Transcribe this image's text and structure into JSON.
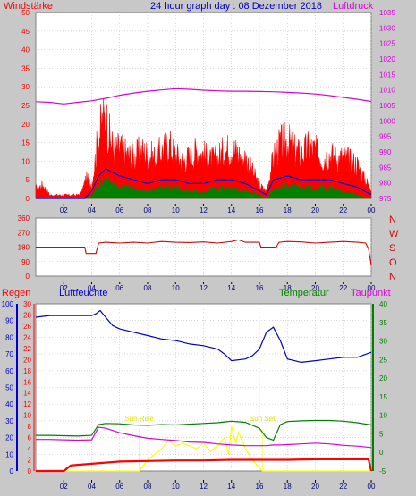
{
  "header": {
    "left_label": "Windstärke",
    "title": "24 hour graph day : 08 Dezember 2018",
    "right_label": "Luftdruck"
  },
  "colors": {
    "background": "#c8c8c8",
    "plot": "#ffffff",
    "grid": "#c0c0c0",
    "wind": "#ff0000",
    "gust": "#0000dd",
    "avg": "#008000",
    "pressure": "#dd00dd",
    "direction": "#dd0000",
    "humidity": "#0000cc",
    "temperature": "#008000",
    "dewpoint": "#dd00dd",
    "rain": "#ff0000",
    "solar": "#ffff00"
  },
  "chart_data": [
    {
      "type": "area",
      "name": "wind_pressure",
      "title": "24 hour graph day : 08 Dezember 2018",
      "left_axis_label": "Windstärke",
      "right_axis_label": "Luftdruck",
      "x_tick_labels": [
        "02",
        "04",
        "06",
        "08",
        "10",
        "12",
        "14",
        "16",
        "18",
        "20",
        "22",
        "00"
      ],
      "xlim_hours": [
        0,
        24
      ],
      "left_ticks": [
        "50",
        "45",
        "40",
        "35",
        "30",
        "25",
        "20",
        "15",
        "10",
        "5",
        "0"
      ],
      "left_ylim": [
        0,
        50
      ],
      "right_ticks": [
        "1035",
        "1030",
        "1025",
        "1020",
        "1015",
        "1010",
        "1005",
        "1000",
        "995",
        "990",
        "985",
        "980",
        "975"
      ],
      "right_ylim": [
        975,
        1035
      ],
      "series": [
        {
          "name": "",
          "color": "#ff0000",
          "hours": [
            0,
            0.5,
            1,
            2,
            3,
            3.3,
            3.6,
            4,
            4.4,
            4.7,
            5,
            5.3,
            5.6,
            6,
            6.5,
            7,
            7.5,
            8,
            8.5,
            9,
            9.5,
            10,
            10.5,
            11,
            11.5,
            12,
            12.5,
            13,
            13.5,
            14,
            14.5,
            15,
            15.5,
            16,
            16.5,
            17,
            17.5,
            18,
            18.5,
            19,
            19.5,
            20,
            20.5,
            21,
            21.5,
            22,
            22.5,
            23,
            23.5,
            24
          ],
          "values": [
            3,
            4,
            1,
            1,
            1,
            2,
            6,
            4,
            16,
            22,
            24,
            18,
            14,
            15,
            13,
            12,
            14,
            13,
            12,
            14,
            16,
            13,
            11,
            12,
            14,
            13,
            11,
            12,
            14,
            15,
            13,
            12,
            8,
            4,
            2,
            12,
            16,
            17,
            14,
            13,
            15,
            14,
            12,
            13,
            12,
            12,
            11,
            10,
            6,
            3
          ]
        },
        {
          "name": "",
          "color": "#0000dd",
          "hours": [
            0,
            3.5,
            4,
            4.5,
            5,
            5.5,
            6,
            7,
            8,
            9,
            10,
            11,
            12,
            13,
            14,
            15,
            16,
            16.5,
            17,
            18,
            19,
            20,
            21,
            22,
            23,
            24
          ],
          "values": [
            0,
            0,
            2,
            6,
            8,
            7,
            6,
            5,
            4,
            5,
            5,
            4,
            4,
            5,
            5,
            4,
            2,
            1,
            5,
            6,
            5,
            5,
            5,
            4,
            3,
            1
          ]
        },
        {
          "name": "",
          "color": "#008000",
          "hours": [
            0,
            3.5,
            4,
            4.5,
            5,
            5.5,
            6,
            7,
            8,
            9,
            10,
            11,
            12,
            13,
            14,
            15,
            16,
            16.5,
            17,
            18,
            19,
            20,
            21,
            22,
            23,
            24
          ],
          "values": [
            0,
            0,
            1,
            4,
            5,
            4,
            3,
            3,
            2,
            3,
            3,
            2,
            2,
            3,
            3,
            2,
            1,
            0,
            3,
            4,
            3,
            3,
            3,
            2,
            1,
            0
          ]
        },
        {
          "name": "",
          "color": "#dd00dd",
          "axis": "right",
          "hours": [
            0,
            1,
            2,
            3,
            4,
            5,
            6,
            7,
            8,
            9,
            10,
            11,
            12,
            13,
            14,
            15,
            16,
            17,
            18,
            19,
            20,
            21,
            22,
            23,
            24
          ],
          "values": [
            1006.2,
            1006.0,
            1005.5,
            1006.0,
            1006.5,
            1007.3,
            1008.3,
            1009.0,
            1009.6,
            1010.0,
            1010.4,
            1010.2,
            1009.9,
            1009.7,
            1009.6,
            1009.6,
            1009.5,
            1009.4,
            1009.2,
            1009.0,
            1008.7,
            1008.2,
            1007.6,
            1007.0,
            1006.3
          ]
        }
      ]
    },
    {
      "type": "line",
      "name": "direction",
      "y_ticks": [
        "360",
        "270",
        "180",
        "90",
        "0"
      ],
      "ylim": [
        0,
        360
      ],
      "right_labels": [
        "N",
        "W",
        "S",
        "O",
        "N"
      ],
      "x_tick_labels": [
        "02",
        "04",
        "06",
        "08",
        "10",
        "12",
        "14",
        "16",
        "18",
        "20",
        "22",
        "00"
      ],
      "series": [
        {
          "name": "",
          "color": "#dd0000",
          "hours": [
            0,
            3.5,
            3.6,
            4.3,
            4.5,
            5,
            6,
            7,
            8,
            9,
            10,
            11,
            12,
            13,
            14,
            14.5,
            15,
            16,
            16.1,
            17.2,
            17.4,
            18,
            19,
            20,
            21,
            22,
            23,
            23.6,
            23.8,
            24
          ],
          "values": [
            180,
            180,
            140,
            140,
            205,
            210,
            205,
            210,
            205,
            215,
            210,
            208,
            212,
            205,
            215,
            225,
            210,
            210,
            180,
            180,
            210,
            215,
            212,
            205,
            210,
            215,
            210,
            205,
            170,
            70
          ]
        }
      ]
    },
    {
      "type": "line",
      "name": "humidity_temperature",
      "labels": {
        "rain": "Regen",
        "humidity": "Luftfeuchte",
        "temperature": "Temperatur",
        "dewpoint": "Taupunkt"
      },
      "humidity_ticks": [
        "100",
        "90",
        "80",
        "70",
        "60",
        "50",
        "40",
        "30",
        "20",
        "10",
        "0"
      ],
      "humidity_ylim": [
        0,
        100
      ],
      "rain_ticks": [
        "30",
        "28",
        "26",
        "24",
        "22",
        "20",
        "18",
        "16",
        "14",
        "12",
        "10",
        "8",
        "6",
        "4",
        "2",
        "0"
      ],
      "rain_ylim": [
        0,
        30
      ],
      "temperature_ticks": [
        "40",
        "35",
        "30",
        "25",
        "20",
        "15",
        "10",
        "5",
        "0",
        "-5"
      ],
      "temperature_ylim": [
        -5,
        40
      ],
      "x_tick_labels": [
        "02",
        "04",
        "06",
        "08",
        "10",
        "12",
        "14",
        "16",
        "18",
        "20",
        "22",
        "00"
      ],
      "annotations": [
        "Sun Rise",
        "Sun Set"
      ],
      "series": [
        {
          "name": "Luftfeuchte",
          "color": "#0000cc",
          "hours": [
            0,
            1,
            2,
            3,
            4,
            4.3,
            4.6,
            5,
            5.5,
            6,
            7,
            8,
            9,
            10,
            11,
            12,
            13,
            13.5,
            14,
            15,
            15.5,
            16,
            16.5,
            17,
            17.5,
            18,
            19,
            20,
            21,
            22,
            23,
            24
          ],
          "values": [
            92,
            93,
            93,
            93,
            93,
            94,
            96,
            92,
            87,
            85,
            83,
            81,
            79,
            78,
            76,
            75,
            73,
            70,
            66,
            67,
            69,
            73,
            83,
            86,
            78,
            67,
            65,
            66,
            67,
            68,
            68,
            71
          ]
        },
        {
          "name": "Temperatur",
          "color": "#008000",
          "hours": [
            0,
            1,
            2,
            3,
            4,
            4.5,
            5,
            6,
            7,
            8,
            9,
            10,
            11,
            12,
            13,
            14,
            15,
            16,
            16.5,
            17,
            17.5,
            18,
            19,
            20,
            21,
            22,
            23,
            24
          ],
          "values": [
            4.6,
            4.6,
            4.5,
            4.4,
            4.6,
            7.5,
            7.8,
            7.7,
            7.4,
            7.3,
            7.5,
            7.4,
            7.6,
            7.8,
            8.0,
            8.4,
            8.1,
            6.5,
            4.0,
            3.3,
            7.5,
            8.3,
            8.5,
            8.6,
            8.6,
            8.4,
            8.0,
            7.4
          ]
        },
        {
          "name": "Taupunkt",
          "color": "#dd00dd",
          "hours": [
            0,
            1,
            2,
            3,
            4,
            4.5,
            5,
            6,
            7,
            8,
            9,
            10,
            11,
            12,
            13,
            14,
            15,
            16,
            16.5,
            17,
            17.5,
            18,
            19,
            20,
            21,
            22,
            23,
            24
          ],
          "values": [
            3.5,
            3.5,
            3.4,
            3.3,
            3.4,
            6.8,
            6.5,
            5.3,
            4.5,
            3.8,
            3.5,
            3.2,
            2.8,
            2.7,
            2.3,
            2.0,
            1.8,
            1.8,
            1.8,
            2.0,
            2.0,
            2.1,
            2.3,
            2.5,
            2.3,
            1.9,
            1.7,
            1.3
          ]
        },
        {
          "name": "Regen",
          "color": "#ff0000",
          "hours": [
            0,
            2,
            2.5,
            3,
            4,
            5,
            6,
            8,
            10,
            12,
            14,
            16,
            18,
            20,
            22,
            23.8,
            24
          ],
          "values": [
            0,
            0,
            1,
            1.1,
            1.3,
            1.5,
            1.7,
            1.8,
            1.9,
            1.9,
            2.0,
            2.0,
            2.0,
            2.1,
            2.1,
            2.1,
            0
          ]
        },
        {
          "name": "",
          "color": "#ffff00",
          "hours": [
            0,
            7.4,
            8,
            9,
            9.5,
            10,
            10.5,
            11,
            11.5,
            12,
            12.5,
            13,
            13.5,
            13.8,
            14,
            14.3,
            14.5,
            15,
            15.5,
            16.2,
            24
          ],
          "values": [
            0,
            0,
            2,
            4,
            5.5,
            4.5,
            5,
            4.5,
            4,
            5,
            3.5,
            4.5,
            6,
            3,
            8,
            5,
            7,
            4,
            2,
            0,
            0
          ]
        }
      ]
    }
  ]
}
